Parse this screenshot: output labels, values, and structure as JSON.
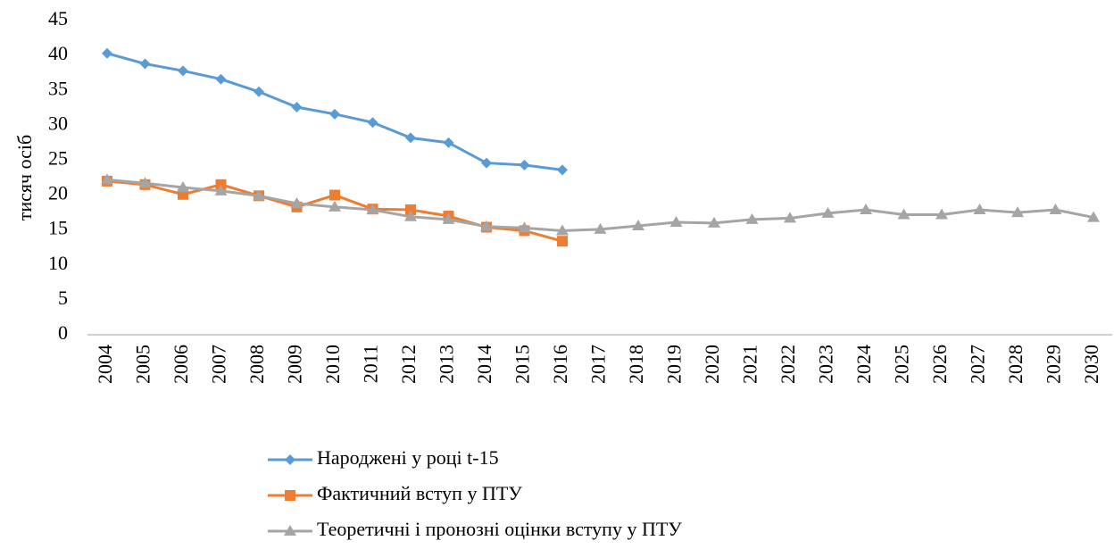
{
  "chart_data": {
    "type": "line",
    "ylabel": "тисяч осіб",
    "categories": [
      "2004",
      "2005",
      "2006",
      "2007",
      "2008",
      "2009",
      "2010",
      "2011",
      "2012",
      "2013",
      "2014",
      "2015",
      "2016",
      "2017",
      "2018",
      "2019",
      "2020",
      "2021",
      "2022",
      "2023",
      "2024",
      "2025",
      "2026",
      "2027",
      "2028",
      "2029",
      "2030"
    ],
    "series": [
      {
        "name": "Народжені у році t-15",
        "color": "#5b9bd5",
        "marker": "diamond",
        "values": [
          40.3,
          38.8,
          37.8,
          36.6,
          34.8,
          32.6,
          31.6,
          30.4,
          28.2,
          27.5,
          24.6,
          24.3,
          23.6,
          null,
          null,
          null,
          null,
          null,
          null,
          null,
          null,
          null,
          null,
          null,
          null,
          null,
          null
        ]
      },
      {
        "name": "Фактичний вступ у ПТУ",
        "color": "#ed7d31",
        "marker": "square",
        "values": [
          22.0,
          21.5,
          20.1,
          21.5,
          19.9,
          18.3,
          20.0,
          18.0,
          17.9,
          17.0,
          15.4,
          14.9,
          13.4,
          null,
          null,
          null,
          null,
          null,
          null,
          null,
          null,
          null,
          null,
          null,
          null,
          null,
          null
        ]
      },
      {
        "name": "Теоретичні і пронозні оцінки вступу у ПТУ",
        "color": "#a5a5a5",
        "marker": "triangle",
        "values": [
          22.2,
          21.7,
          21.1,
          20.6,
          19.9,
          18.8,
          18.3,
          17.9,
          16.9,
          16.5,
          15.5,
          15.3,
          14.9,
          15.1,
          15.6,
          16.1,
          16.0,
          16.5,
          16.7,
          17.4,
          17.9,
          17.2,
          17.2,
          17.9,
          17.5,
          17.9,
          16.8
        ]
      }
    ],
    "ylim": [
      0,
      45
    ],
    "yticks": [
      0,
      5,
      10,
      15,
      20,
      25,
      30,
      35,
      40,
      45
    ],
    "grid": false,
    "legend": "bottom"
  }
}
